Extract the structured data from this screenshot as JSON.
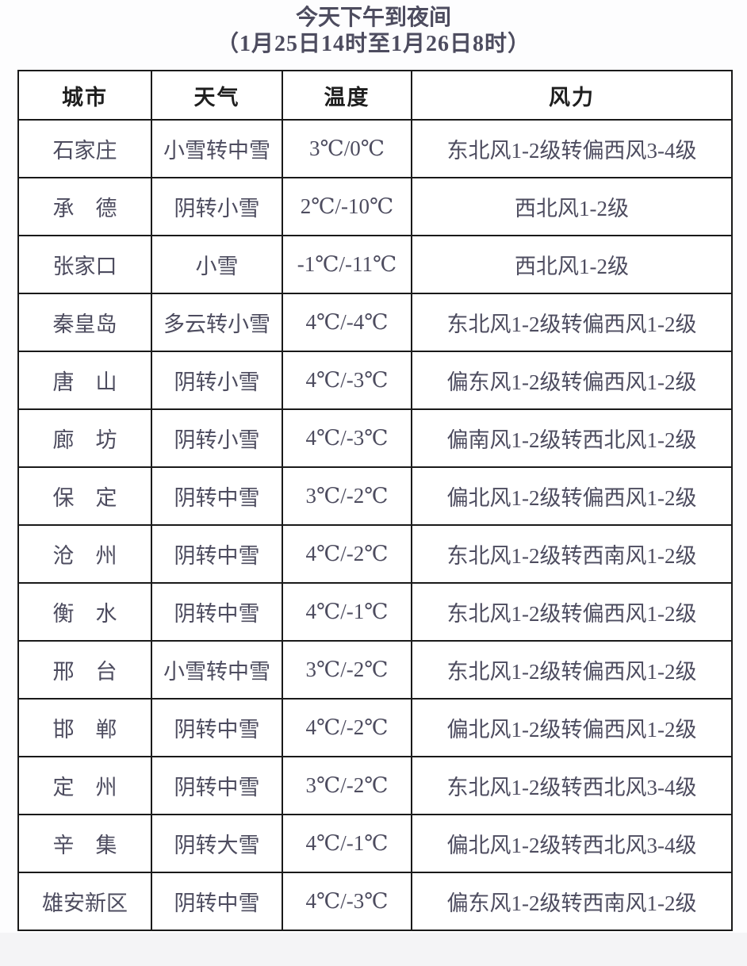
{
  "title": {
    "line1": "今天下午到夜间",
    "line2": "（1月25日14时至1月26日8时）"
  },
  "colors": {
    "title_text": "#4d4c5f",
    "header_text": "#1e1e1e",
    "body_text": "#4d4c5f",
    "temperature_text": "#c53434",
    "border": "#1a1a1a"
  },
  "table": {
    "headers": [
      "城市",
      "天气",
      "温度",
      "风力"
    ],
    "rows": [
      {
        "city": "石家庄",
        "weather": "小雪转中雪",
        "temperature": "3℃/0℃",
        "wind": "东北风1-2级转偏西风3-4级"
      },
      {
        "city": "承　德",
        "weather": "阴转小雪",
        "temperature": "2℃/-10℃",
        "wind": "西北风1-2级"
      },
      {
        "city": "张家口",
        "weather": "小雪",
        "temperature": "-1℃/-11℃",
        "wind": "西北风1-2级"
      },
      {
        "city": "秦皇岛",
        "weather": "多云转小雪",
        "temperature": "4℃/-4℃",
        "wind": "东北风1-2级转偏西风1-2级"
      },
      {
        "city": "唐　山",
        "weather": "阴转小雪",
        "temperature": "4℃/-3℃",
        "wind": "偏东风1-2级转偏西风1-2级"
      },
      {
        "city": "廊　坊",
        "weather": "阴转小雪",
        "temperature": "4℃/-3℃",
        "wind": "偏南风1-2级转西北风1-2级"
      },
      {
        "city": "保　定",
        "weather": "阴转中雪",
        "temperature": "3℃/-2℃",
        "wind": "偏北风1-2级转偏西风1-2级"
      },
      {
        "city": "沧　州",
        "weather": "阴转中雪",
        "temperature": "4℃/-2℃",
        "wind": "东北风1-2级转西南风1-2级"
      },
      {
        "city": "衡　水",
        "weather": "阴转中雪",
        "temperature": "4℃/-1℃",
        "wind": "东北风1-2级转偏西风1-2级"
      },
      {
        "city": "邢　台",
        "weather": "小雪转中雪",
        "temperature": "3℃/-2℃",
        "wind": "东北风1-2级转偏西风1-2级"
      },
      {
        "city": "邯　郸",
        "weather": "阴转中雪",
        "temperature": "4℃/-2℃",
        "wind": "偏北风1-2级转偏西风1-2级"
      },
      {
        "city": "定　州",
        "weather": "阴转中雪",
        "temperature": "3℃/-2℃",
        "wind": "东北风1-2级转西北风3-4级"
      },
      {
        "city": "辛　集",
        "weather": "阴转大雪",
        "temperature": "4℃/-1℃",
        "wind": "偏北风1-2级转西北风3-4级"
      },
      {
        "city": "雄安新区",
        "weather": "阴转中雪",
        "temperature": "4℃/-3℃",
        "wind": "偏东风1-2级转西南风1-2级"
      }
    ]
  }
}
